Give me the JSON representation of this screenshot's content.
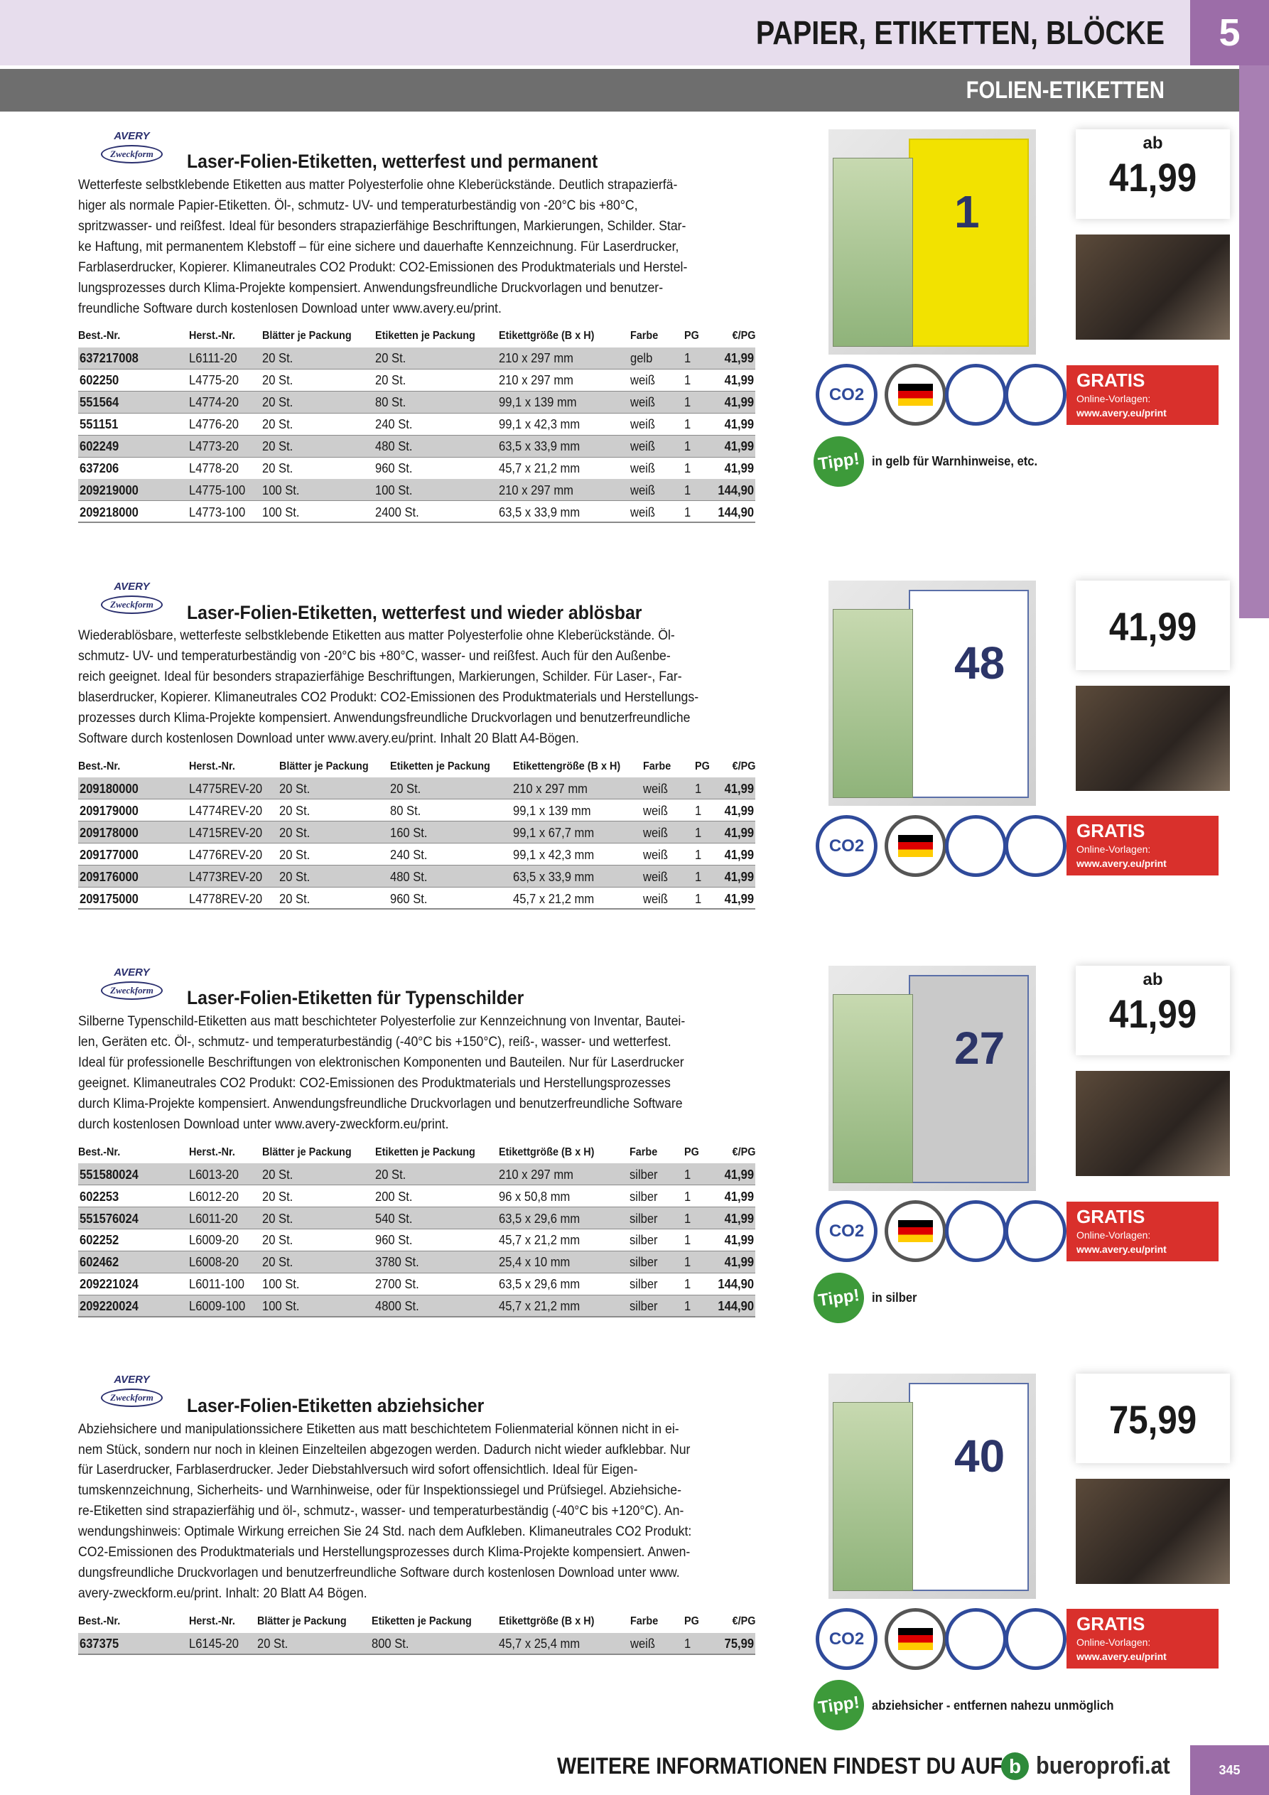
{
  "header": {
    "title": "PAPIER, ETIKETTEN, BLÖCKE",
    "chapter": "5",
    "subtitle": "FOLIEN-ETIKETTEN"
  },
  "brand": [
    "AVERY",
    "Zweckform"
  ],
  "badges": {
    "co2": "CO2",
    "gratis": "GRATIS",
    "vorlagen": "Online-Vorlagen:",
    "url": "www.avery.eu/print"
  },
  "tip_label": "Tipp!",
  "sections": [
    {
      "title": "Laser-Folien-Etiketten, wetterfest und permanent",
      "description": [
        "Wetterfeste selbstklebende Etiketten aus matter Polyesterfolie ohne Kleberückstände. Deutlich strapazierfä-",
        "higer als normale Papier-Etiketten. Öl-, schmutz- UV- und temperaturbeständig von -20°C bis +80°C,",
        "spritzwasser- und reißfest. Ideal für besonders strapazierfähige Beschriftungen, Markierungen, Schilder. Star-",
        "ke Haftung, mit permanentem Klebstoff – für eine sichere und dauerhafte Kennzeichnung. Für Laserdrucker,",
        "Farblaserdrucker, Kopierer. Klimaneutrales CO2 Produkt: CO2-Emissionen des Produktmaterials und Herstel-",
        "lungsprozesses durch Klima-Projekte kompensiert. Anwendungsfreundliche Druckvorlagen und benutzer-",
        "freundliche Software durch kostenlosen Download unter www.avery.eu/print."
      ],
      "columns": [
        "Best.-Nr.",
        "Herst.-Nr.",
        "Blätter je Packung",
        "Etiketten je Packung",
        "Etikettgröße (B x H)",
        "Farbe",
        "PG",
        "€/PG"
      ],
      "rows": [
        [
          "637217008",
          "L6111-20",
          "20 St.",
          "20 St.",
          "210 x 297 mm",
          "gelb",
          "1",
          "41,99"
        ],
        [
          "602250",
          "L4775-20",
          "20 St.",
          "20 St.",
          "210 x 297 mm",
          "weiß",
          "1",
          "41,99"
        ],
        [
          "551564",
          "L4774-20",
          "20 St.",
          "80 St.",
          "99,1 x 139 mm",
          "weiß",
          "1",
          "41,99"
        ],
        [
          "551151",
          "L4776-20",
          "20 St.",
          "240 St.",
          "99,1 x 42,3 mm",
          "weiß",
          "1",
          "41,99"
        ],
        [
          "602249",
          "L4773-20",
          "20 St.",
          "480 St.",
          "63,5 x 33,9 mm",
          "weiß",
          "1",
          "41,99"
        ],
        [
          "637206",
          "L4778-20",
          "20 St.",
          "960 St.",
          "45,7 x 21,2 mm",
          "weiß",
          "1",
          "41,99"
        ],
        [
          "209219000",
          "L4775-100",
          "100 St.",
          "100 St.",
          "210 x 297 mm",
          "weiß",
          "1",
          "144,90"
        ],
        [
          "209218000",
          "L4773-100",
          "100 St.",
          "2400 St.",
          "63,5 x 33,9 mm",
          "weiß",
          "1",
          "144,90"
        ]
      ],
      "price_prefix": "ab",
      "price": "41,99",
      "product_label": "1",
      "tip": "in gelb für Warnhinweise, etc."
    },
    {
      "title": "Laser-Folien-Etiketten, wetterfest und wieder ablösbar",
      "description": [
        "Wiederablösbare, wetterfeste selbstklebende Etiketten aus matter Polyesterfolie ohne Kleberückstände. Öl-",
        "schmutz- UV- und temperaturbeständig von -20°C bis +80°C, wasser- und reißfest. Auch für den Außenbe-",
        "reich geeignet. Ideal für besonders strapazierfähige Beschriftungen, Markierungen, Schilder. Für Laser-, Far-",
        "blaserdrucker, Kopierer. Klimaneutrales CO2 Produkt: CO2-Emissionen des Produktmaterials und Herstellungs-",
        "prozesses durch Klima-Projekte kompensiert. Anwendungsfreundliche Druckvorlagen und benutzerfreundliche",
        "Software durch kostenlosen Download unter www.avery.eu/print. Inhalt 20 Blatt A4-Bögen."
      ],
      "columns": [
        "Best.-Nr.",
        "Herst.-Nr.",
        "Blätter je Packung",
        "Etiketten je Packung",
        "Etikettengröße (B x H)",
        "Farbe",
        "PG",
        "€/PG"
      ],
      "rows": [
        [
          "209180000",
          "L4775REV-20",
          "20 St.",
          "20 St.",
          "210 x 297 mm",
          "weiß",
          "1",
          "41,99"
        ],
        [
          "209179000",
          "L4774REV-20",
          "20 St.",
          "80 St.",
          "99,1 x 139 mm",
          "weiß",
          "1",
          "41,99"
        ],
        [
          "209178000",
          "L4715REV-20",
          "20 St.",
          "160 St.",
          "99,1 x 67,7 mm",
          "weiß",
          "1",
          "41,99"
        ],
        [
          "209177000",
          "L4776REV-20",
          "20 St.",
          "240 St.",
          "99,1 x 42,3 mm",
          "weiß",
          "1",
          "41,99"
        ],
        [
          "209176000",
          "L4773REV-20",
          "20 St.",
          "480 St.",
          "63,5 x 33,9 mm",
          "weiß",
          "1",
          "41,99"
        ],
        [
          "209175000",
          "L4778REV-20",
          "20 St.",
          "960 St.",
          "45,7 x 21,2 mm",
          "weiß",
          "1",
          "41,99"
        ]
      ],
      "price": "41,99",
      "product_label": "48"
    },
    {
      "title": "Laser-Folien-Etiketten für Typenschilder",
      "description": [
        "Silberne Typenschild-Etiketten aus matt beschichteter Polyesterfolie zur Kennzeichnung von Inventar, Bautei-",
        "len, Geräten etc. Öl-, schmutz- und temperaturbeständig (-40°C bis +150°C), reiß-, wasser- und wetterfest.",
        "Ideal für professionelle Beschriftungen von elektronischen Komponenten und Bauteilen. Nur für Laserdrucker",
        "geeignet. Klimaneutrales CO2 Produkt: CO2-Emissionen des Produktmaterials und Herstellungsprozesses",
        "durch Klima-Projekte kompensiert. Anwendungsfreundliche Druckvorlagen und benutzerfreundliche Software",
        "durch kostenlosen Download unter www.avery-zweckform.eu/print."
      ],
      "columns": [
        "Best.-Nr.",
        "Herst.-Nr.",
        "Blätter je Packung",
        "Etiketten je Packung",
        "Etikettgröße (B x H)",
        "Farbe",
        "PG",
        "€/PG"
      ],
      "rows": [
        [
          "551580024",
          "L6013-20",
          "20 St.",
          "20 St.",
          "210 x 297 mm",
          "silber",
          "1",
          "41,99"
        ],
        [
          "602253",
          "L6012-20",
          "20 St.",
          "200 St.",
          "96 x 50,8 mm",
          "silber",
          "1",
          "41,99"
        ],
        [
          "551576024",
          "L6011-20",
          "20 St.",
          "540 St.",
          "63,5 x 29,6 mm",
          "silber",
          "1",
          "41,99"
        ],
        [
          "602252",
          "L6009-20",
          "20 St.",
          "960 St.",
          "45,7 x 21,2 mm",
          "silber",
          "1",
          "41,99"
        ],
        [
          "602462",
          "L6008-20",
          "20 St.",
          "3780 St.",
          "25,4 x 10 mm",
          "silber",
          "1",
          "41,99"
        ],
        [
          "209221024",
          "L6011-100",
          "100 St.",
          "2700 St.",
          "63,5 x 29,6 mm",
          "silber",
          "1",
          "144,90"
        ],
        [
          "209220024",
          "L6009-100",
          "100 St.",
          "4800 St.",
          "45,7 x 21,2 mm",
          "silber",
          "1",
          "144,90"
        ]
      ],
      "price_prefix": "ab",
      "price": "41,99",
      "product_label": "27",
      "tip": "in silber"
    },
    {
      "title": "Laser-Folien-Etiketten abziehsicher",
      "description": [
        "Abziehsichere und manipulationssichere Etiketten aus matt beschichtetem Folienmaterial können nicht in ei-",
        "nem Stück, sondern nur noch in kleinen Einzelteilen abgezogen werden. Dadurch nicht wieder aufklebbar. Nur",
        "für Laserdrucker, Farblaserdrucker. Jeder Diebstahlversuch wird sofort offensichtlich. Ideal für Eigen-",
        "tumskennzeichnung, Sicherheits- und Warnhinweise, oder für Inspektionssiegel und Prüfsiegel. Abziehsiche-",
        "re-Etiketten sind strapazierfähig und öl-, schmutz-, wasser- und temperaturbeständig (-40°C bis +120°C). An-",
        "wendungshinweis: Optimale Wirkung erreichen Sie 24 Std. nach dem Aufkleben. Klimaneutrales CO2 Produkt:",
        "CO2-Emissionen des Produktmaterials und Herstellungsprozesses durch Klima-Projekte kompensiert. Anwen-",
        "dungsfreundliche Druckvorlagen und benutzerfreundliche Software durch kostenlosen Download unter www.",
        "avery-zweckform.eu/print. Inhalt: 20 Blatt A4 Bögen."
      ],
      "columns": [
        "Best.-Nr.",
        "Herst.-Nr.",
        "Blätter je Packung",
        "Etiketten je Packung",
        "Etikettgröße (B x H)",
        "Farbe",
        "PG",
        "€/PG"
      ],
      "rows": [
        [
          "637375",
          "L6145-20",
          "20 St.",
          "800 St.",
          "45,7 x 25,4 mm",
          "weiß",
          "1",
          "75,99"
        ]
      ],
      "price": "75,99",
      "product_label": "40",
      "tip": "abziehsicher - entfernen nahezu unmöglich"
    }
  ],
  "footer": {
    "text": "WEITERE INFORMATIONEN FINDEST DU AUF",
    "logo": "b",
    "site": "bueroprofi.at",
    "page": "345"
  }
}
